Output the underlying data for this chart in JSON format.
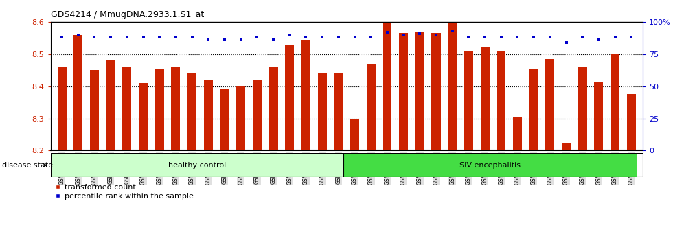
{
  "title": "GDS4214 / MmugDNA.2933.1.S1_at",
  "samples": [
    "GSM347802",
    "GSM347803",
    "GSM347810",
    "GSM347811",
    "GSM347812",
    "GSM347813",
    "GSM347814",
    "GSM347815",
    "GSM347816",
    "GSM347817",
    "GSM347818",
    "GSM347820",
    "GSM347821",
    "GSM347822",
    "GSM347825",
    "GSM347826",
    "GSM347827",
    "GSM347828",
    "GSM347800",
    "GSM347801",
    "GSM347804",
    "GSM347805",
    "GSM347806",
    "GSM347807",
    "GSM347808",
    "GSM347809",
    "GSM347823",
    "GSM347824",
    "GSM347829",
    "GSM347830",
    "GSM347831",
    "GSM347832",
    "GSM347833",
    "GSM347834",
    "GSM347835",
    "GSM347836"
  ],
  "bar_values": [
    8.46,
    8.56,
    8.45,
    8.48,
    8.46,
    8.41,
    8.455,
    8.46,
    8.44,
    8.42,
    8.39,
    8.4,
    8.42,
    8.46,
    8.53,
    8.545,
    8.44,
    8.44,
    8.3,
    8.47,
    8.595,
    8.565,
    8.57,
    8.565,
    8.595,
    8.51,
    8.52,
    8.51,
    8.305,
    8.455,
    8.485,
    8.225,
    8.46,
    8.415,
    8.5,
    8.375
  ],
  "percentile_values": [
    88,
    90,
    88,
    88,
    88,
    88,
    88,
    88,
    88,
    86,
    86,
    86,
    88,
    86,
    90,
    88,
    88,
    88,
    88,
    88,
    92,
    90,
    91,
    90,
    93,
    88,
    88,
    88,
    88,
    88,
    88,
    84,
    88,
    86,
    88,
    88
  ],
  "group_labels": [
    "healthy control",
    "SIV encephalitis"
  ],
  "group_split": 18,
  "healthy_color": "#CCFFCC",
  "siv_color": "#44DD44",
  "bar_color": "#CC2200",
  "dot_color": "#0000CC",
  "ylim_left": [
    8.2,
    8.6
  ],
  "ylim_right": [
    0,
    100
  ],
  "yticks_left": [
    8.2,
    8.3,
    8.4,
    8.5,
    8.6
  ],
  "yticks_right": [
    0,
    25,
    50,
    75,
    100
  ],
  "tick_color_left": "#CC2200",
  "tick_color_right": "#0000CC",
  "legend_bar_label": "transformed count",
  "legend_dot_label": "percentile rank within the sample",
  "disease_state_label": "disease state"
}
